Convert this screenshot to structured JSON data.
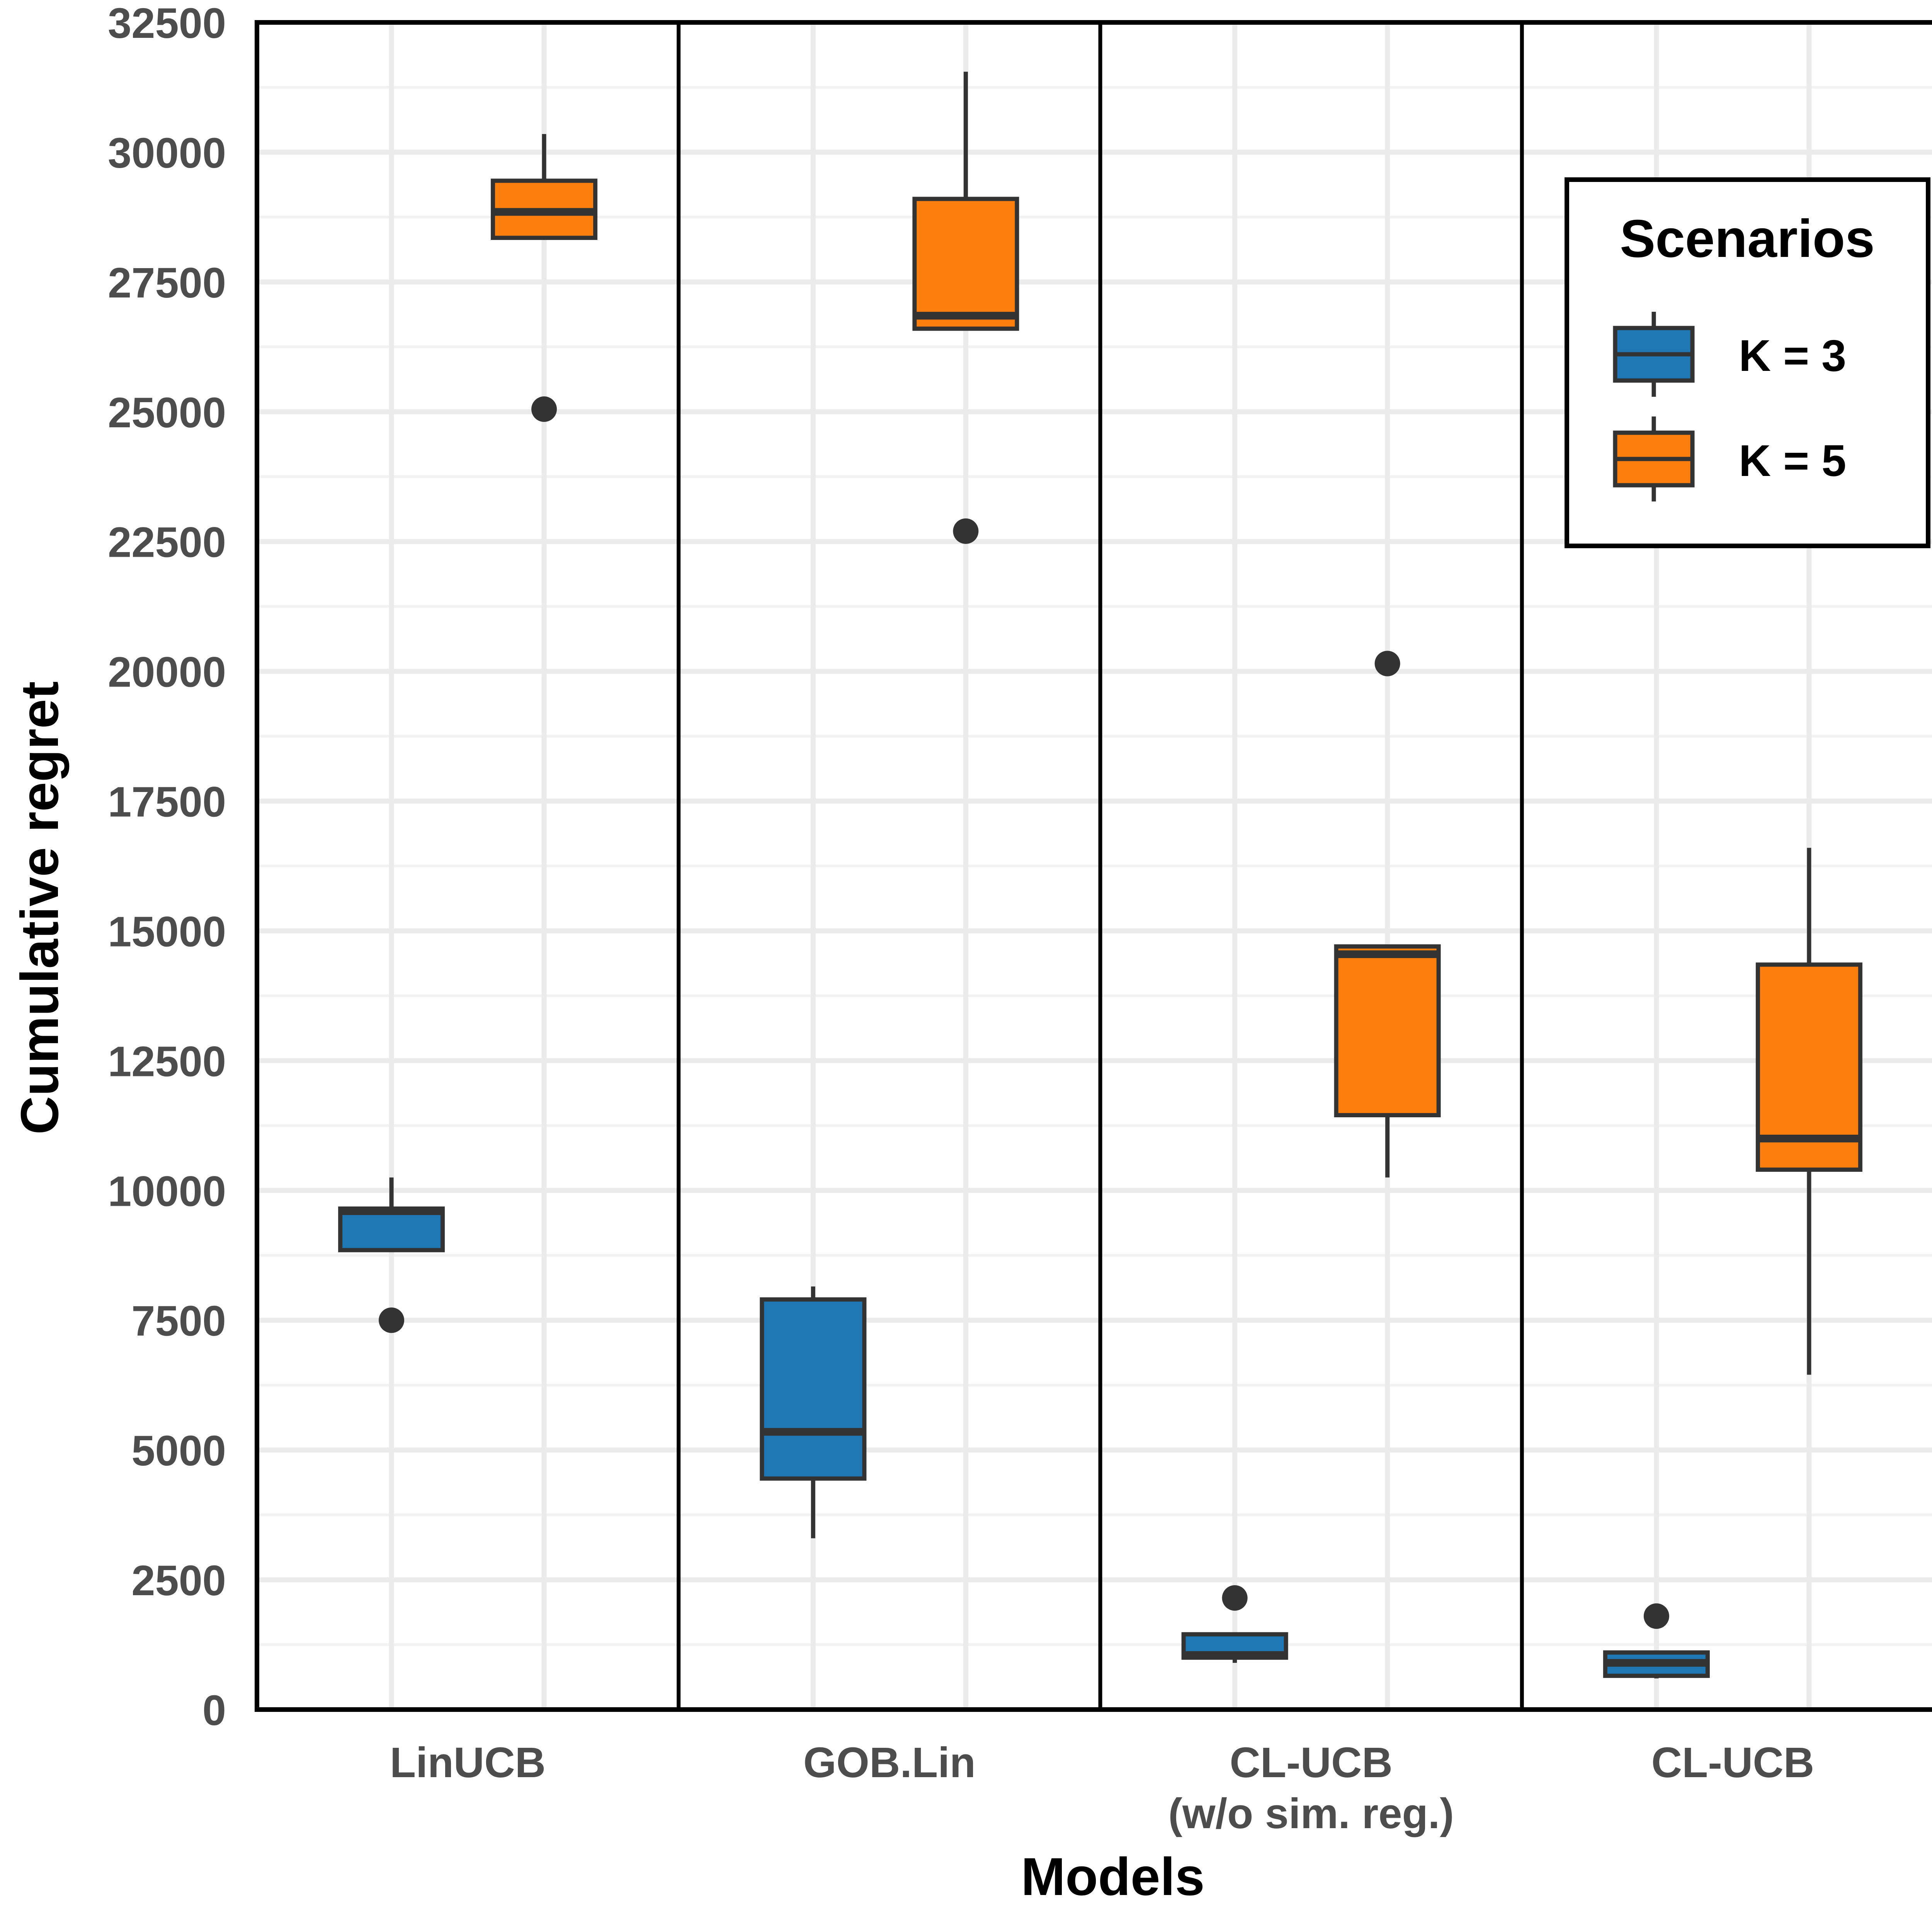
{
  "chart_data": {
    "type": "box",
    "xlabel": "Models",
    "ylabel": "Cumulative regret",
    "ylim": [
      0,
      32500
    ],
    "yticks": [
      0,
      2500,
      5000,
      7500,
      10000,
      12500,
      15000,
      17500,
      20000,
      22500,
      25000,
      27500,
      30000,
      32500
    ],
    "grid": true,
    "legend": {
      "title": "Scenarios",
      "position": "top-right",
      "entries": [
        "K = 3",
        "K = 5"
      ]
    },
    "categories": [
      "LinUCB",
      "GOB.Lin",
      "CL-UCB",
      "CL-UCB"
    ],
    "category_subtitles": [
      "",
      "",
      "(w/o sim. reg.)",
      ""
    ],
    "series": [
      {
        "name": "K = 3",
        "color": "#1f77b4",
        "boxes": [
          {
            "whisker_low": 8850,
            "q1": 8850,
            "median": 9600,
            "q3": 9650,
            "whisker_high": 10250,
            "outliers": [
              7500
            ]
          },
          {
            "whisker_low": 3300,
            "q1": 4450,
            "median": 5350,
            "q3": 7900,
            "whisker_high": 8150,
            "outliers": []
          },
          {
            "whisker_low": 900,
            "q1": 1000,
            "median": 1050,
            "q3": 1450,
            "whisker_high": 1450,
            "outliers": [
              2150
            ]
          },
          {
            "whisker_low": 600,
            "q1": 650,
            "median": 900,
            "q3": 1100,
            "whisker_high": 1100,
            "outliers": [
              1800
            ]
          }
        ]
      },
      {
        "name": "K = 5",
        "color": "#ff7f0e",
        "boxes": [
          {
            "whisker_low": 28350,
            "q1": 28350,
            "median": 28850,
            "q3": 29450,
            "whisker_high": 30350,
            "outliers": [
              25050
            ]
          },
          {
            "whisker_low": 26600,
            "q1": 26600,
            "median": 26850,
            "q3": 29100,
            "whisker_high": 31550,
            "outliers": [
              22700
            ]
          },
          {
            "whisker_low": 10250,
            "q1": 11450,
            "median": 14550,
            "q3": 14700,
            "whisker_high": 14700,
            "outliers": [
              20150
            ]
          },
          {
            "whisker_low": 6450,
            "q1": 10400,
            "median": 11000,
            "q3": 14350,
            "whisker_high": 16600,
            "outliers": []
          }
        ]
      }
    ]
  }
}
